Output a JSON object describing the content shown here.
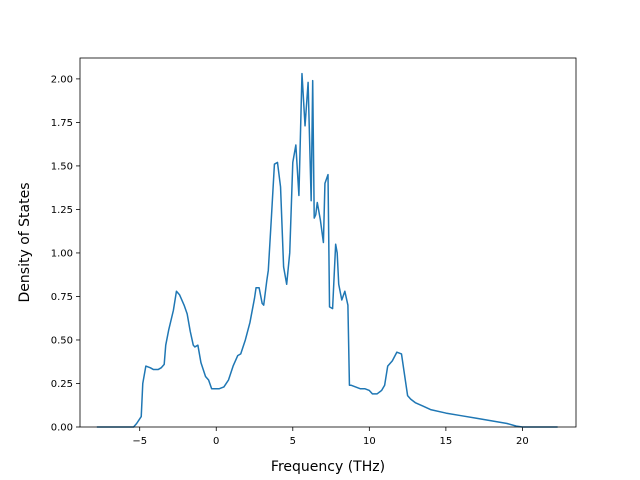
{
  "chart_data": {
    "type": "line",
    "title": "",
    "xlabel": "Frequency (THz)",
    "ylabel": "Density of States",
    "xlim": [
      -8.9,
      23.5
    ],
    "ylim": [
      0.0,
      2.12
    ],
    "xticks": [
      -5,
      0,
      5,
      10,
      15,
      20
    ],
    "xtick_labels": [
      "−5",
      "0",
      "5",
      "10",
      "15",
      "20"
    ],
    "yticks": [
      0.0,
      0.25,
      0.5,
      0.75,
      1.0,
      1.25,
      1.5,
      1.75,
      2.0
    ],
    "ytick_labels": [
      "0.00",
      "0.25",
      "0.50",
      "0.75",
      "1.00",
      "1.25",
      "1.50",
      "1.75",
      "2.00"
    ],
    "grid": false,
    "colors": {
      "line": "#1f77b4"
    },
    "series": [
      {
        "x": [
          -7.8,
          -5.4,
          -5.2,
          -4.9,
          -4.8,
          -4.6,
          -4.3,
          -4.1,
          -3.8,
          -3.6,
          -3.4,
          -3.3,
          -3.1,
          -2.8,
          -2.6,
          -2.4,
          -2.1,
          -1.9,
          -1.7,
          -1.5,
          -1.4,
          -1.2,
          -1.0,
          -0.7,
          -0.5,
          -0.3,
          0.0,
          0.2,
          0.5,
          0.8,
          1.1,
          1.4,
          1.6,
          1.9,
          2.2,
          2.5,
          2.6,
          2.8,
          3.0,
          3.1,
          3.3,
          3.4,
          3.6,
          3.8,
          4.0,
          4.2,
          4.4,
          4.6,
          4.8,
          5.0,
          5.2,
          5.4,
          5.6,
          5.8,
          6.0,
          6.2,
          6.3,
          6.4,
          6.5,
          6.6,
          6.8,
          7.0,
          7.1,
          7.3,
          7.4,
          7.6,
          7.8,
          7.9,
          8.0,
          8.2,
          8.4,
          8.6,
          8.7,
          8.8,
          9.1,
          9.4,
          9.7,
          10.0,
          10.2,
          10.5,
          10.8,
          11.0,
          11.2,
          11.5,
          11.8,
          12.1,
          12.3,
          12.5,
          12.7,
          13.0,
          13.5,
          14.0,
          15.0,
          16.0,
          17.0,
          18.0,
          19.0,
          19.6,
          20.0,
          22.3
        ],
        "y": [
          0.0,
          0.0,
          0.02,
          0.06,
          0.25,
          0.35,
          0.34,
          0.33,
          0.33,
          0.34,
          0.36,
          0.47,
          0.56,
          0.67,
          0.78,
          0.76,
          0.7,
          0.65,
          0.55,
          0.47,
          0.46,
          0.47,
          0.37,
          0.29,
          0.27,
          0.22,
          0.22,
          0.22,
          0.23,
          0.27,
          0.35,
          0.41,
          0.42,
          0.5,
          0.6,
          0.74,
          0.8,
          0.8,
          0.71,
          0.7,
          0.84,
          0.9,
          1.2,
          1.51,
          1.52,
          1.38,
          0.92,
          0.82,
          1.0,
          1.52,
          1.62,
          1.33,
          2.03,
          1.73,
          1.98,
          1.3,
          1.99,
          1.2,
          1.22,
          1.29,
          1.19,
          1.06,
          1.4,
          1.45,
          0.69,
          0.68,
          1.05,
          1.0,
          0.82,
          0.73,
          0.78,
          0.7,
          0.24,
          0.24,
          0.23,
          0.22,
          0.22,
          0.21,
          0.19,
          0.19,
          0.21,
          0.24,
          0.35,
          0.38,
          0.43,
          0.42,
          0.3,
          0.18,
          0.16,
          0.14,
          0.12,
          0.1,
          0.08,
          0.065,
          0.05,
          0.035,
          0.02,
          0.005,
          0.0,
          0.0
        ]
      }
    ]
  }
}
